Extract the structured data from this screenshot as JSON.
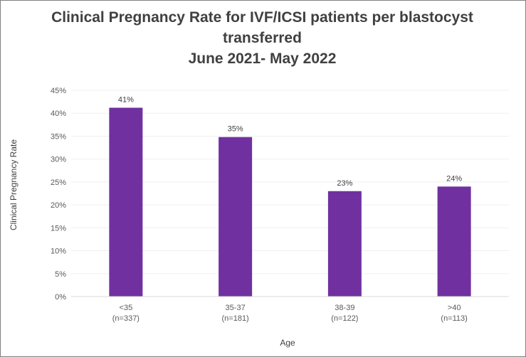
{
  "chart_data": {
    "type": "bar",
    "title_lines": [
      "Clinical Pregnancy Rate for IVF/ICSI patients per blastocyst",
      "transferred",
      "June 2021- May 2022"
    ],
    "xlabel": "Age",
    "ylabel": "Clinical Pregnancy Rate",
    "categories": [
      {
        "label": "<35",
        "sub": "(n=337)"
      },
      {
        "label": "35-37",
        "sub": "(n=181)"
      },
      {
        "label": "38-39",
        "sub": "(n=122)"
      },
      {
        "label": ">40",
        "sub": "(n=113)"
      }
    ],
    "values": [
      41.2,
      34.8,
      23.0,
      24.0
    ],
    "data_labels": [
      "41%",
      "35%",
      "23%",
      "24%"
    ],
    "yticks": [
      "0%",
      "5%",
      "10%",
      "15%",
      "20%",
      "25%",
      "30%",
      "35%",
      "40%",
      "45%"
    ],
    "ylim": [
      0,
      45
    ],
    "grid": true,
    "bar_color": "#7030a0"
  }
}
